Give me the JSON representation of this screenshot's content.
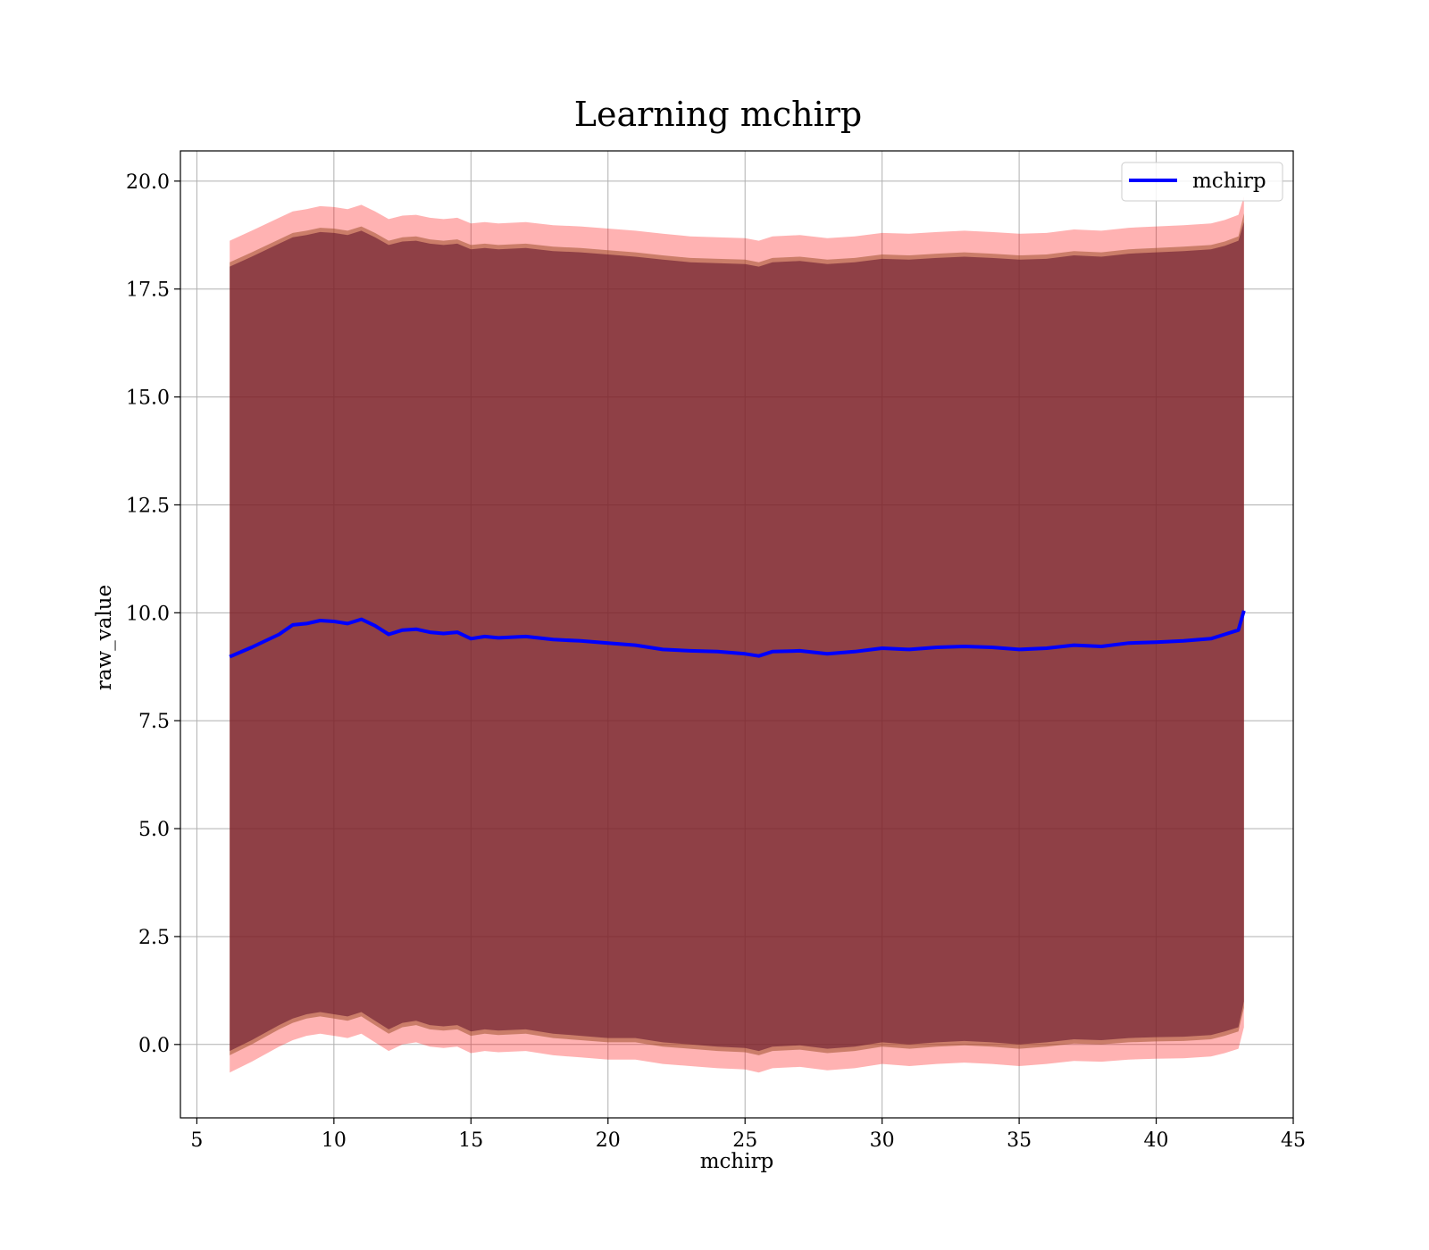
{
  "chart_data": {
    "type": "line",
    "title": "Learning mchirp",
    "xlabel": "mchirp",
    "ylabel": "raw_value",
    "xlim": [
      4.4,
      45
    ],
    "ylim": [
      -1.7,
      20.7
    ],
    "xticks": [
      5,
      10,
      15,
      20,
      25,
      30,
      35,
      40,
      45
    ],
    "xtick_labels": [
      "5",
      "10",
      "15",
      "20",
      "25",
      "30",
      "35",
      "40",
      "45"
    ],
    "yticks": [
      0,
      2.5,
      5,
      7.5,
      10,
      12.5,
      15,
      17.5,
      20
    ],
    "ytick_labels": [
      "0.0",
      "2.5",
      "5.0",
      "7.5",
      "10.0",
      "12.5",
      "15.0",
      "17.5",
      "20.0"
    ],
    "grid": true,
    "legend": {
      "position": "top-right",
      "entries": [
        "mchirp"
      ]
    },
    "colors": {
      "line": "#0000ff",
      "outer_band": "#ff0000",
      "middle_band": "#a0522d",
      "inner_band": "#5e0f2a"
    },
    "x": [
      6.2,
      7.0,
      8.0,
      8.5,
      9.0,
      9.5,
      10.0,
      10.5,
      11.0,
      11.5,
      12.0,
      12.5,
      13.0,
      13.5,
      14.0,
      14.5,
      15.0,
      15.5,
      16.0,
      17.0,
      18.0,
      19.0,
      20.0,
      21.0,
      22.0,
      23.0,
      24.0,
      25.0,
      25.5,
      26.0,
      27.0,
      28.0,
      29.0,
      30.0,
      31.0,
      32.0,
      33.0,
      34.0,
      35.0,
      36.0,
      37.0,
      38.0,
      39.0,
      40.0,
      41.0,
      42.0,
      42.5,
      43.0,
      43.2
    ],
    "series": [
      {
        "name": "mchirp",
        "values": [
          8.98,
          9.2,
          9.5,
          9.72,
          9.75,
          9.82,
          9.8,
          9.75,
          9.85,
          9.7,
          9.5,
          9.6,
          9.62,
          9.55,
          9.52,
          9.55,
          9.4,
          9.45,
          9.42,
          9.45,
          9.38,
          9.35,
          9.3,
          9.25,
          9.15,
          9.12,
          9.1,
          9.05,
          9.0,
          9.1,
          9.12,
          9.05,
          9.1,
          9.18,
          9.15,
          9.2,
          9.22,
          9.2,
          9.15,
          9.18,
          9.25,
          9.22,
          9.3,
          9.32,
          9.35,
          9.4,
          9.5,
          9.6,
          10.05
        ]
      }
    ],
    "bands": [
      {
        "lower": [
          -0.65,
          -0.4,
          -0.05,
          0.1,
          0.2,
          0.25,
          0.2,
          0.15,
          0.25,
          0.05,
          -0.15,
          0.0,
          0.05,
          -0.05,
          -0.08,
          -0.05,
          -0.2,
          -0.15,
          -0.18,
          -0.15,
          -0.25,
          -0.3,
          -0.35,
          -0.35,
          -0.45,
          -0.5,
          -0.55,
          -0.58,
          -0.65,
          -0.55,
          -0.52,
          -0.6,
          -0.55,
          -0.45,
          -0.5,
          -0.45,
          -0.42,
          -0.45,
          -0.5,
          -0.45,
          -0.38,
          -0.4,
          -0.35,
          -0.33,
          -0.32,
          -0.28,
          -0.2,
          -0.1,
          0.4
        ],
        "upper": [
          18.62,
          18.85,
          19.15,
          19.3,
          19.35,
          19.42,
          19.4,
          19.35,
          19.45,
          19.3,
          19.12,
          19.2,
          19.22,
          19.15,
          19.12,
          19.15,
          19.02,
          19.05,
          19.02,
          19.05,
          18.98,
          18.95,
          18.9,
          18.85,
          18.78,
          18.72,
          18.7,
          18.68,
          18.62,
          18.72,
          18.75,
          18.68,
          18.72,
          18.8,
          18.78,
          18.82,
          18.85,
          18.82,
          18.78,
          18.8,
          18.88,
          18.85,
          18.92,
          18.95,
          18.98,
          19.02,
          19.1,
          19.22,
          19.65
        ]
      },
      {
        "lower": [
          -0.25,
          0.0,
          0.35,
          0.5,
          0.6,
          0.65,
          0.6,
          0.55,
          0.65,
          0.45,
          0.25,
          0.4,
          0.45,
          0.35,
          0.32,
          0.35,
          0.2,
          0.25,
          0.22,
          0.25,
          0.15,
          0.1,
          0.05,
          0.05,
          -0.05,
          -0.1,
          -0.15,
          -0.18,
          -0.25,
          -0.15,
          -0.12,
          -0.2,
          -0.15,
          -0.05,
          -0.1,
          -0.05,
          -0.02,
          -0.05,
          -0.1,
          -0.05,
          0.02,
          0.0,
          0.05,
          0.07,
          0.08,
          0.12,
          0.2,
          0.3,
          0.85
        ],
        "upper": [
          18.12,
          18.35,
          18.65,
          18.8,
          18.85,
          18.92,
          18.9,
          18.85,
          18.95,
          18.8,
          18.62,
          18.7,
          18.72,
          18.65,
          18.62,
          18.65,
          18.52,
          18.55,
          18.52,
          18.55,
          18.48,
          18.45,
          18.4,
          18.35,
          18.28,
          18.22,
          18.2,
          18.18,
          18.12,
          18.22,
          18.25,
          18.18,
          18.22,
          18.3,
          18.28,
          18.32,
          18.35,
          18.32,
          18.28,
          18.3,
          18.38,
          18.35,
          18.42,
          18.45,
          18.48,
          18.52,
          18.6,
          18.72,
          19.25
        ]
      },
      {
        "lower": [
          -0.15,
          0.1,
          0.45,
          0.6,
          0.7,
          0.75,
          0.7,
          0.65,
          0.75,
          0.55,
          0.35,
          0.5,
          0.55,
          0.45,
          0.42,
          0.45,
          0.3,
          0.35,
          0.32,
          0.35,
          0.25,
          0.2,
          0.15,
          0.15,
          0.05,
          0.0,
          -0.05,
          -0.08,
          -0.15,
          -0.05,
          -0.02,
          -0.1,
          -0.05,
          0.05,
          0.0,
          0.05,
          0.08,
          0.05,
          0.0,
          0.05,
          0.12,
          0.1,
          0.15,
          0.17,
          0.18,
          0.22,
          0.3,
          0.4,
          1.0
        ],
        "upper": [
          18.02,
          18.25,
          18.55,
          18.7,
          18.75,
          18.82,
          18.8,
          18.75,
          18.85,
          18.7,
          18.52,
          18.6,
          18.62,
          18.55,
          18.52,
          18.55,
          18.42,
          18.45,
          18.42,
          18.45,
          18.38,
          18.35,
          18.3,
          18.25,
          18.18,
          18.12,
          18.1,
          18.08,
          18.02,
          18.12,
          18.15,
          18.08,
          18.12,
          18.2,
          18.18,
          18.22,
          18.25,
          18.22,
          18.18,
          18.2,
          18.28,
          18.25,
          18.32,
          18.35,
          18.38,
          18.42,
          18.5,
          18.62,
          19.05
        ]
      }
    ]
  }
}
